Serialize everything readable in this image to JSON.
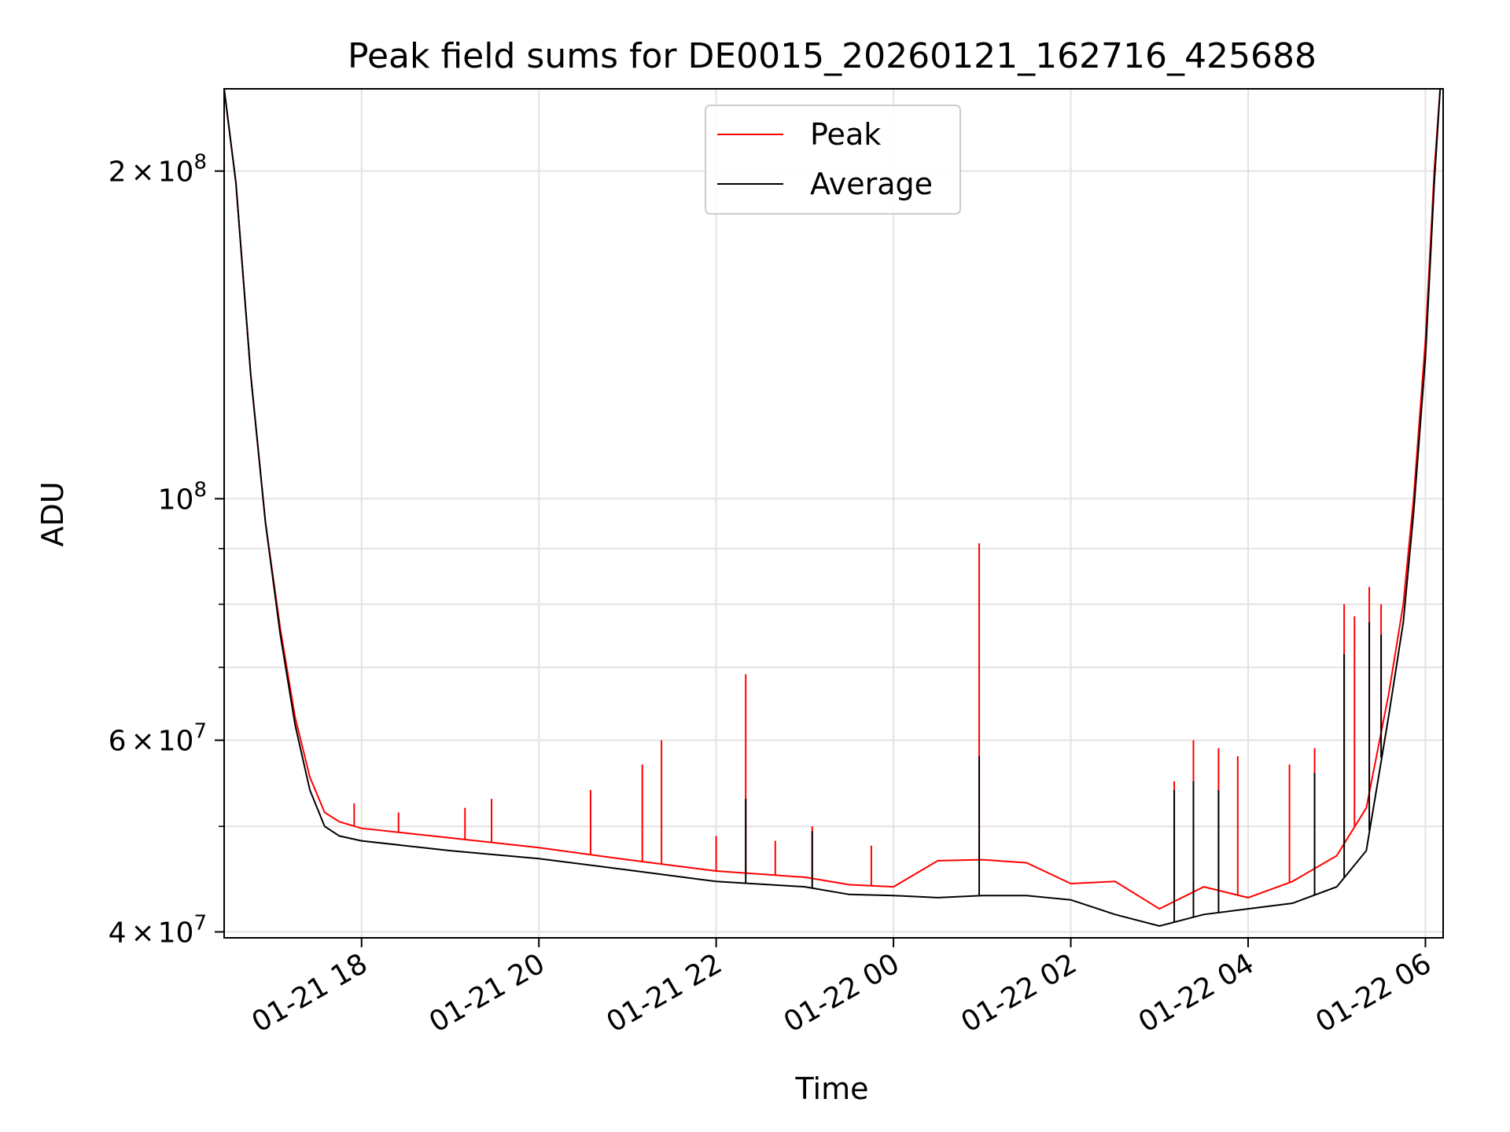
{
  "chart_data": {
    "type": "line",
    "title": "Peak field sums for DE0015_20260121_162716_425688",
    "xlabel": "Time",
    "ylabel": "ADU",
    "yscale": "log",
    "ylim": [
      39500000,
      238000000
    ],
    "xlim": [
      "2026-01-21 16:27",
      "2026-01-22 06:12"
    ],
    "grid": true,
    "legend": "upper center",
    "x_ticks": [
      {
        "value": "2026-01-21 18:00",
        "label": "01-21 18"
      },
      {
        "value": "2026-01-21 20:00",
        "label": "01-21 20"
      },
      {
        "value": "2026-01-21 22:00",
        "label": "01-21 22"
      },
      {
        "value": "2026-01-22 00:00",
        "label": "01-22 00"
      },
      {
        "value": "2026-01-22 02:00",
        "label": "01-22 02"
      },
      {
        "value": "2026-01-22 04:00",
        "label": "01-22 04"
      },
      {
        "value": "2026-01-22 06:00",
        "label": "01-22 06"
      }
    ],
    "y_ticks": [
      {
        "value": 40000000,
        "mantissa": "4",
        "exp": "7"
      },
      {
        "value": 60000000,
        "mantissa": "6",
        "exp": "7"
      },
      {
        "value": 100000000,
        "mantissa": "",
        "exp": "8"
      },
      {
        "value": 200000000,
        "mantissa": "2",
        "exp": "8"
      }
    ],
    "y_minor_ticks": [
      50000000,
      70000000,
      80000000,
      90000000
    ],
    "series": [
      {
        "name": "Peak",
        "color": "#ff0000",
        "points": [
          [
            "2026-01-21 16:27",
            238000000
          ],
          [
            "2026-01-21 16:35",
            195000000
          ],
          [
            "2026-01-21 16:45",
            130000000
          ],
          [
            "2026-01-21 16:55",
            95000000
          ],
          [
            "2026-01-21 17:05",
            76000000
          ],
          [
            "2026-01-21 17:15",
            63000000
          ],
          [
            "2026-01-21 17:25",
            55500000
          ],
          [
            "2026-01-21 17:35",
            51500000
          ],
          [
            "2026-01-21 17:45",
            50500000
          ],
          [
            "2026-01-21 18:00",
            49800000
          ],
          [
            "2026-01-21 19:00",
            48800000
          ],
          [
            "2026-01-21 20:00",
            47800000
          ],
          [
            "2026-01-21 21:00",
            46600000
          ],
          [
            "2026-01-21 22:00",
            45500000
          ],
          [
            "2026-01-21 23:00",
            44900000
          ],
          [
            "2026-01-21 23:30",
            44200000
          ],
          [
            "2026-01-22 00:00",
            44000000
          ],
          [
            "2026-01-22 00:30",
            46500000
          ],
          [
            "2026-01-22 01:00",
            46600000
          ],
          [
            "2026-01-22 01:30",
            46300000
          ],
          [
            "2026-01-22 02:00",
            44300000
          ],
          [
            "2026-01-22 02:30",
            44500000
          ],
          [
            "2026-01-22 03:00",
            42000000
          ],
          [
            "2026-01-22 03:30",
            44000000
          ],
          [
            "2026-01-22 04:00",
            43000000
          ],
          [
            "2026-01-22 04:30",
            44500000
          ],
          [
            "2026-01-22 05:00",
            47000000
          ],
          [
            "2026-01-22 05:20",
            52000000
          ],
          [
            "2026-01-22 05:35",
            66000000
          ],
          [
            "2026-01-22 05:45",
            80000000
          ],
          [
            "2026-01-22 05:52",
            100000000
          ],
          [
            "2026-01-22 06:00",
            140000000
          ],
          [
            "2026-01-22 06:06",
            200000000
          ],
          [
            "2026-01-22 06:10",
            238000000
          ]
        ],
        "spikes": [
          [
            "2026-01-21 17:55",
            52500000
          ],
          [
            "2026-01-21 18:25",
            51500000
          ],
          [
            "2026-01-21 19:10",
            52000000
          ],
          [
            "2026-01-21 19:28",
            53000000
          ],
          [
            "2026-01-21 20:35",
            54000000
          ],
          [
            "2026-01-21 21:10",
            57000000
          ],
          [
            "2026-01-21 21:23",
            60000000
          ],
          [
            "2026-01-21 22:00",
            49000000
          ],
          [
            "2026-01-21 22:20",
            69000000
          ],
          [
            "2026-01-21 22:40",
            48500000
          ],
          [
            "2026-01-21 23:05",
            50000000
          ],
          [
            "2026-01-21 23:45",
            48000000
          ],
          [
            "2026-01-22 00:58",
            91000000
          ],
          [
            "2026-01-22 03:10",
            55000000
          ],
          [
            "2026-01-22 03:23",
            60000000
          ],
          [
            "2026-01-22 03:40",
            59000000
          ],
          [
            "2026-01-22 03:53",
            58000000
          ],
          [
            "2026-01-22 04:28",
            57000000
          ],
          [
            "2026-01-22 04:45",
            59000000
          ],
          [
            "2026-01-22 05:05",
            80000000
          ],
          [
            "2026-01-22 05:12",
            78000000
          ],
          [
            "2026-01-22 05:22",
            83000000
          ],
          [
            "2026-01-22 05:30",
            80000000
          ]
        ]
      },
      {
        "name": "Average",
        "color": "#000000",
        "points": [
          [
            "2026-01-21 16:27",
            238000000
          ],
          [
            "2026-01-21 16:35",
            195000000
          ],
          [
            "2026-01-21 16:45",
            130000000
          ],
          [
            "2026-01-21 16:55",
            95000000
          ],
          [
            "2026-01-21 17:05",
            75000000
          ],
          [
            "2026-01-21 17:15",
            62000000
          ],
          [
            "2026-01-21 17:25",
            54000000
          ],
          [
            "2026-01-21 17:35",
            50000000
          ],
          [
            "2026-01-21 17:45",
            49000000
          ],
          [
            "2026-01-21 18:00",
            48500000
          ],
          [
            "2026-01-21 19:00",
            47500000
          ],
          [
            "2026-01-21 20:00",
            46700000
          ],
          [
            "2026-01-21 21:00",
            45600000
          ],
          [
            "2026-01-21 22:00",
            44500000
          ],
          [
            "2026-01-21 23:00",
            44000000
          ],
          [
            "2026-01-21 23:30",
            43300000
          ],
          [
            "2026-01-22 00:00",
            43200000
          ],
          [
            "2026-01-22 00:30",
            43000000
          ],
          [
            "2026-01-22 01:00",
            43200000
          ],
          [
            "2026-01-22 01:30",
            43200000
          ],
          [
            "2026-01-22 02:00",
            42800000
          ],
          [
            "2026-01-22 02:30",
            41500000
          ],
          [
            "2026-01-22 03:00",
            40500000
          ],
          [
            "2026-01-22 03:30",
            41500000
          ],
          [
            "2026-01-22 04:00",
            42000000
          ],
          [
            "2026-01-22 04:30",
            42500000
          ],
          [
            "2026-01-22 05:00",
            44000000
          ],
          [
            "2026-01-22 05:20",
            47500000
          ],
          [
            "2026-01-22 05:35",
            63000000
          ],
          [
            "2026-01-22 05:45",
            77000000
          ],
          [
            "2026-01-22 05:52",
            97000000
          ],
          [
            "2026-01-22 06:00",
            135000000
          ],
          [
            "2026-01-22 06:06",
            195000000
          ],
          [
            "2026-01-22 06:10",
            238000000
          ]
        ],
        "spikes": [
          [
            "2026-01-21 22:20",
            53000000
          ],
          [
            "2026-01-21 23:05",
            49500000
          ],
          [
            "2026-01-22 00:58",
            58000000
          ],
          [
            "2026-01-22 03:10",
            54000000
          ],
          [
            "2026-01-22 03:23",
            55000000
          ],
          [
            "2026-01-22 03:40",
            54000000
          ],
          [
            "2026-01-22 04:45",
            56000000
          ],
          [
            "2026-01-22 05:05",
            72000000
          ],
          [
            "2026-01-22 05:22",
            77000000
          ],
          [
            "2026-01-22 05:30",
            75000000
          ]
        ]
      }
    ]
  }
}
